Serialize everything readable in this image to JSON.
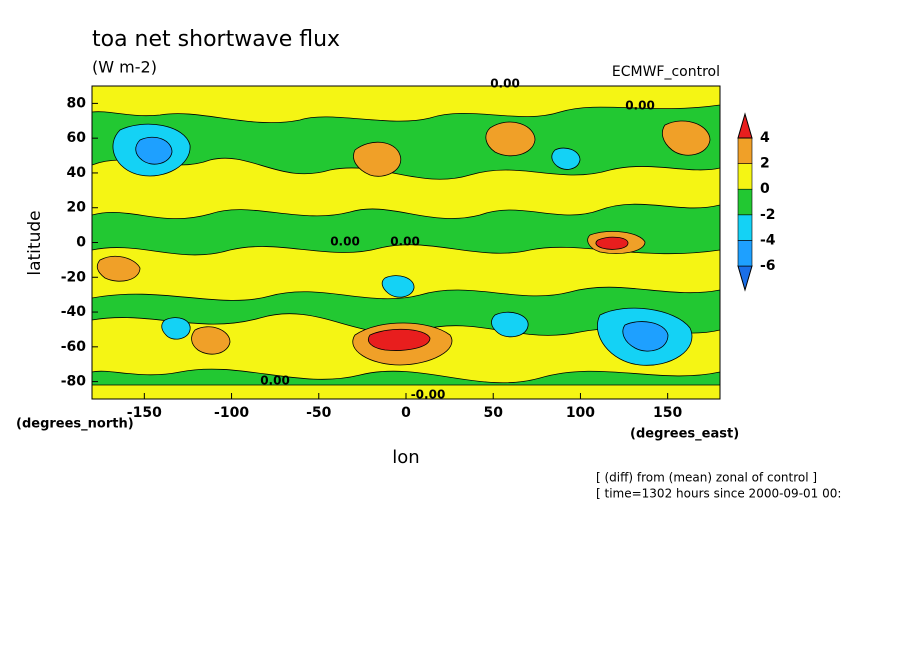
{
  "chart_data": {
    "type": "contour",
    "title": "toa net shortwave flux",
    "subtitle": "(W m-2)",
    "dataset": "ECMWF_control",
    "xlabel": "lon",
    "ylabel": "latitude",
    "xunits": "(degrees_east)",
    "yunits": "(degrees_north)",
    "xlim": [
      -180,
      180
    ],
    "ylim": [
      -90,
      90
    ],
    "xticks": [
      -150,
      -100,
      -50,
      0,
      50,
      100,
      150
    ],
    "yticks": [
      -80,
      -60,
      -40,
      -20,
      0,
      20,
      40,
      60,
      80
    ],
    "contour_labels": [
      "0.00",
      "0.00",
      "0.00",
      "0.00",
      "-0.00",
      "0.00"
    ],
    "colorbar": {
      "levels": [
        -6,
        -4,
        -2,
        0,
        2,
        4
      ],
      "colors": [
        "#1a6fe8",
        "#1ea0ff",
        "#14d2f5",
        "#22c832",
        "#f5f514",
        "#f0a028",
        "#e81e1e"
      ]
    },
    "notes": [
      "[ (diff) from (mean) zonal of control ]",
      "[ time=1302 hours since 2000-09-01 00:"
    ]
  }
}
